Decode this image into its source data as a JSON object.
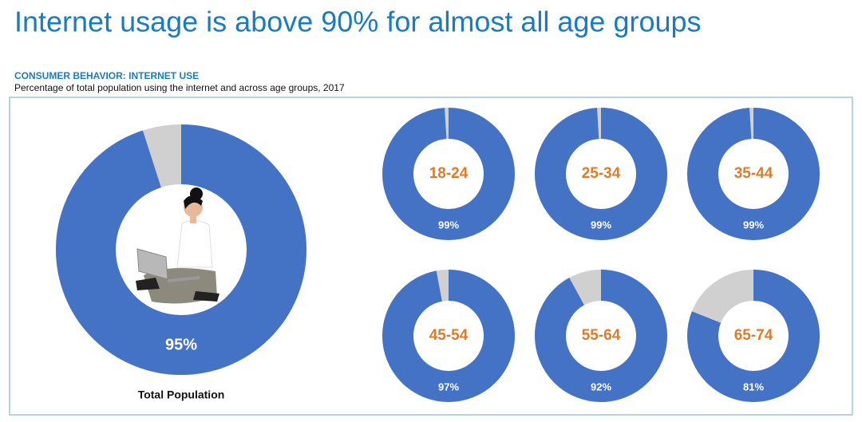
{
  "title": "Internet usage is above 90% for almost all age groups",
  "kicker": "CONSUMER BEHAVIOR: INTERNET USE",
  "subtitle": "Percentage of total population using the internet and across age groups, 2017",
  "chart_data": [
    {
      "type": "donut",
      "label": "Total Population",
      "values": [
        95
      ],
      "value_labels": [
        "95%"
      ],
      "color": "#4472c4",
      "rest_color": "#d0d0d0"
    },
    {
      "type": "donut",
      "label": "18-24",
      "values": [
        99
      ],
      "value_labels": [
        "99%"
      ],
      "color": "#4472c4",
      "rest_color": "#d0d0d0"
    },
    {
      "type": "donut",
      "label": "25-34",
      "values": [
        99
      ],
      "value_labels": [
        "99%"
      ],
      "color": "#4472c4",
      "rest_color": "#d0d0d0"
    },
    {
      "type": "donut",
      "label": "35-44",
      "values": [
        99
      ],
      "value_labels": [
        "99%"
      ],
      "color": "#4472c4",
      "rest_color": "#d0d0d0"
    },
    {
      "type": "donut",
      "label": "45-54",
      "values": [
        97
      ],
      "value_labels": [
        "97%"
      ],
      "color": "#4472c4",
      "rest_color": "#d0d0d0"
    },
    {
      "type": "donut",
      "label": "55-64",
      "values": [
        92
      ],
      "value_labels": [
        "92%"
      ],
      "color": "#4472c4",
      "rest_color": "#d0d0d0"
    },
    {
      "type": "donut",
      "label": "65-74",
      "values": [
        81
      ],
      "value_labels": [
        "81%"
      ],
      "color": "#4472c4",
      "rest_color": "#d0d0d0"
    }
  ]
}
